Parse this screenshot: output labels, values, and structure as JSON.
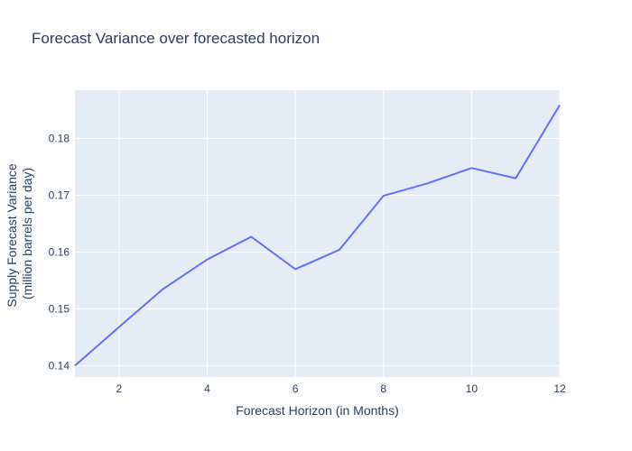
{
  "chart_data": {
    "type": "line",
    "title": "Forecast Variance over forecasted horizon",
    "xlabel": "Forecast Horizon (in Months)",
    "ylabel_line1": "Supply Forecast Variance",
    "ylabel_line2": "(million barrels per day)",
    "xlim": [
      1,
      12
    ],
    "ylim": [
      0.138,
      0.1885
    ],
    "xticks": [
      2,
      4,
      6,
      8,
      10,
      12
    ],
    "xtick_labels": [
      "2",
      "4",
      "6",
      "8",
      "10",
      "12"
    ],
    "yticks": [
      0.14,
      0.15,
      0.16,
      0.17,
      0.18
    ],
    "ytick_labels": [
      "0.14",
      "0.15",
      "0.16",
      "0.17",
      "0.18"
    ],
    "grid": true,
    "line_color": "#636efa",
    "plot_background": "#e5ecf6",
    "series": [
      {
        "x": [
          1,
          2,
          3,
          4,
          5,
          6,
          7,
          8,
          9,
          10,
          11,
          12
        ],
        "values": [
          0.14,
          0.1468,
          0.1535,
          0.1587,
          0.1627,
          0.157,
          0.1604,
          0.1699,
          0.1721,
          0.1748,
          0.173,
          0.1859
        ]
      }
    ]
  }
}
